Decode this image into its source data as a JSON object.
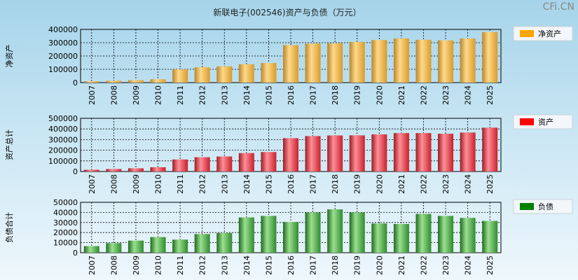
{
  "watermark": "CFi.CN",
  "chart_data": {
    "type": "bar",
    "title": "新联电子(002546)资产与负债（万元）",
    "categories": [
      "2007",
      "2008",
      "2009",
      "2010",
      "2011",
      "2012",
      "2013",
      "2014",
      "2015",
      "2016",
      "2017",
      "2018",
      "2019",
      "2020",
      "2021",
      "2022",
      "2023",
      "2024",
      "2025"
    ],
    "panels": [
      {
        "id": "net-assets",
        "ylabel": "净资产",
        "legend": "净资产",
        "legend_color": "#ffa500",
        "ylim": [
          0,
          400000
        ],
        "yticks": [
          0,
          100000,
          200000,
          300000,
          400000
        ],
        "ytick_labels": [
          "0",
          "100000",
          "200000",
          "300000",
          "400000"
        ],
        "values": [
          10000,
          14000,
          18000,
          25000,
          100000,
          115000,
          122000,
          138000,
          147000,
          282000,
          293000,
          296000,
          306000,
          320000,
          332000,
          322000,
          318000,
          332000,
          380000
        ]
      },
      {
        "id": "total-assets",
        "ylabel": "资产总计",
        "legend": "资产",
        "legend_color": "#ff0000",
        "ylim": [
          0,
          500000
        ],
        "yticks": [
          0,
          100000,
          200000,
          300000,
          400000,
          500000
        ],
        "ytick_labels": [
          "0",
          "100000",
          "200000",
          "300000",
          "400000",
          "500000"
        ],
        "values": [
          16000,
          23000,
          30000,
          40000,
          113000,
          134000,
          141000,
          173000,
          183000,
          313000,
          333000,
          339000,
          340000,
          349000,
          361000,
          361000,
          355000,
          366000,
          412000
        ]
      },
      {
        "id": "total-liabilities",
        "ylabel": "负债合计",
        "legend": "负债",
        "legend_color": "#008000",
        "ylim": [
          0,
          50000
        ],
        "yticks": [
          0,
          10000,
          20000,
          30000,
          40000,
          50000
        ],
        "ytick_labels": [
          "0",
          "10000",
          "20000",
          "30000",
          "40000",
          "50000"
        ],
        "values": [
          6500,
          9500,
          12000,
          15500,
          13000,
          18500,
          19500,
          35000,
          36500,
          30500,
          40000,
          43000,
          40000,
          29000,
          28500,
          38500,
          36500,
          34500,
          31500
        ]
      }
    ]
  }
}
